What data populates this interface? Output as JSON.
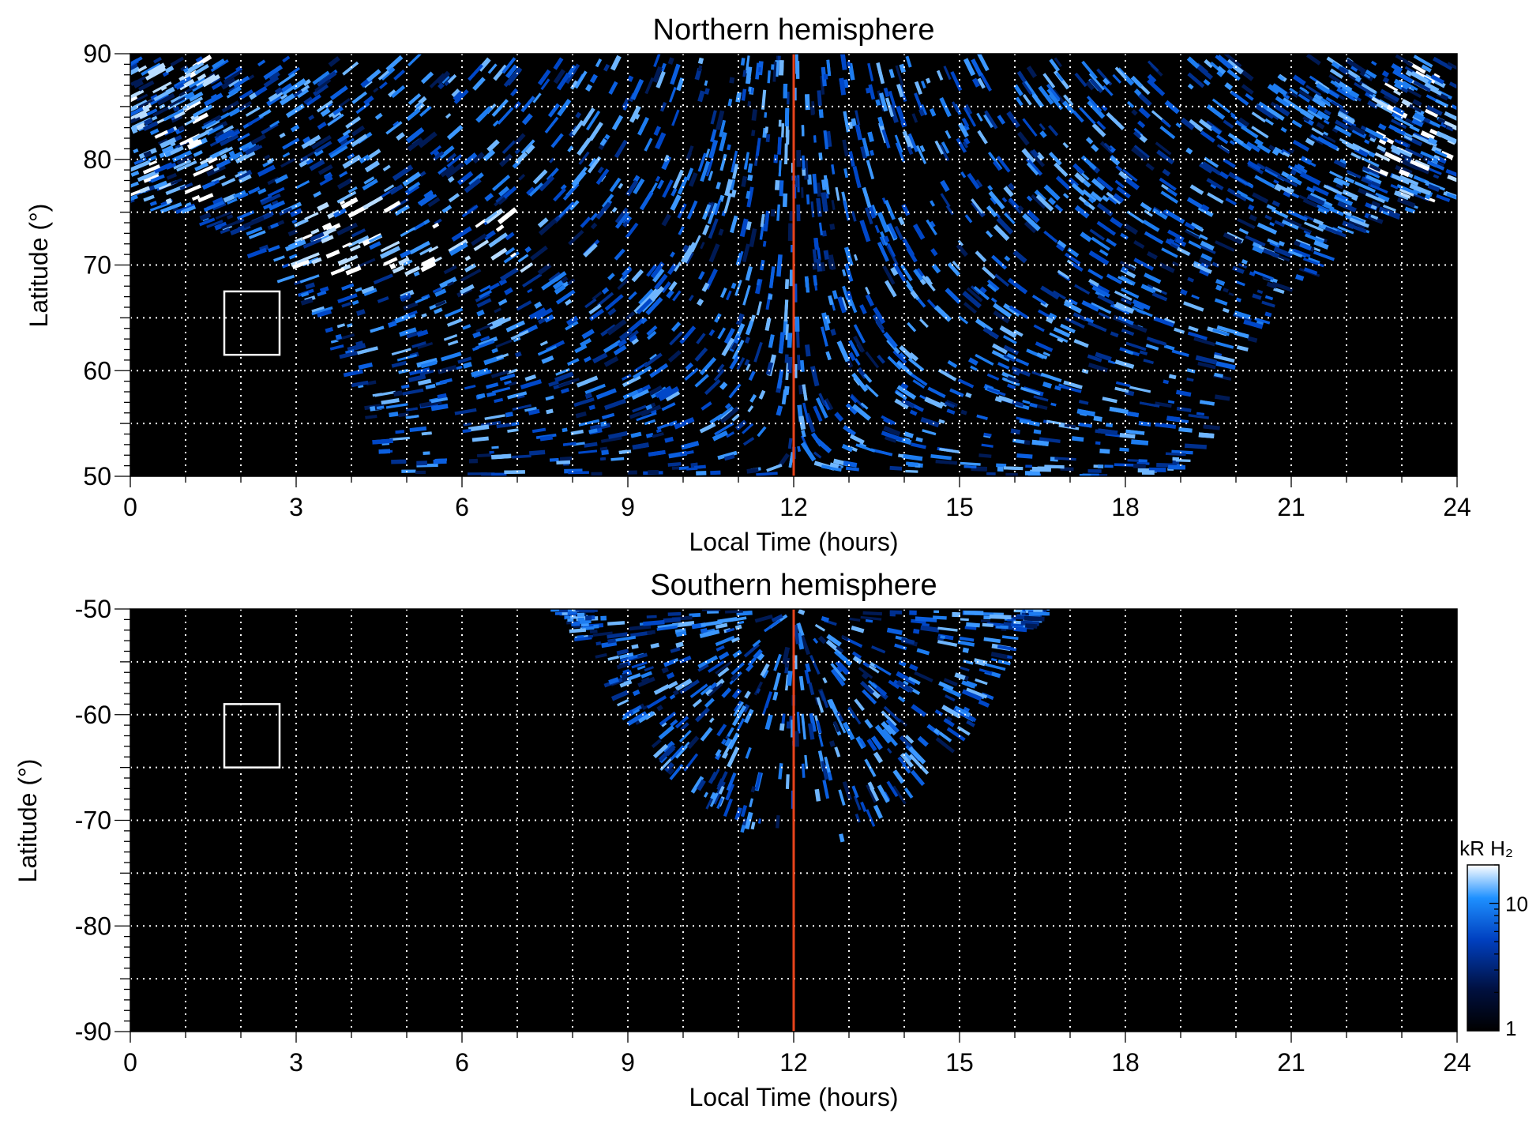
{
  "chart_data": [
    {
      "type": "heatmap",
      "title": "Northern hemisphere",
      "xlabel": "Local Time (hours)",
      "ylabel": "Latitude (°)",
      "xlim": [
        0,
        24
      ],
      "ylim": [
        50,
        90
      ],
      "xticks": [
        "0",
        "3",
        "6",
        "9",
        "12",
        "15",
        "18",
        "21",
        "24"
      ],
      "yticks": [
        "50",
        "60",
        "70",
        "80",
        "90"
      ],
      "xtick_values": [
        0,
        3,
        6,
        9,
        12,
        15,
        18,
        21,
        24
      ],
      "ytick_values": [
        50,
        60,
        70,
        80,
        90
      ],
      "grid": true,
      "grid_x_step": 1,
      "grid_y_step": 5,
      "reference_line_x": 12,
      "reference_line_color": "#e8431b",
      "box": {
        "x0": 1.7,
        "x1": 2.7,
        "y0": 61.5,
        "y1": 67.5
      },
      "coverage_edge_latitude_by_lt": [
        [
          0,
          76
        ],
        [
          1,
          75
        ],
        [
          2,
          72.5
        ],
        [
          3,
          67.5
        ],
        [
          4,
          60
        ],
        [
          4.6,
          52
        ],
        [
          5,
          50
        ],
        [
          19,
          50
        ],
        [
          19.4,
          52
        ],
        [
          20,
          60
        ],
        [
          21,
          67.5
        ],
        [
          22,
          72.5
        ],
        [
          23,
          75
        ],
        [
          24,
          76
        ]
      ],
      "features": [
        {
          "desc_lt": [
            3,
            7.5
          ],
          "lat": [
            69,
            76
          ]
        },
        {
          "desc_lt": [
            22.5,
            24
          ],
          "lat": [
            76,
            86
          ]
        }
      ]
    },
    {
      "type": "heatmap",
      "title": "Southern hemisphere",
      "xlabel": "Local Time (hours)",
      "ylabel": "Latitude (°)",
      "xlim": [
        0,
        24
      ],
      "ylim": [
        -90,
        -50
      ],
      "xticks": [
        "0",
        "3",
        "6",
        "9",
        "12",
        "15",
        "18",
        "21",
        "24"
      ],
      "yticks": [
        "-90",
        "-80",
        "-70",
        "-60",
        "-50"
      ],
      "xtick_values": [
        0,
        3,
        6,
        9,
        12,
        15,
        18,
        21,
        24
      ],
      "ytick_values": [
        -90,
        -80,
        -70,
        -60,
        -50
      ],
      "grid": true,
      "grid_x_step": 1,
      "grid_y_step": 5,
      "reference_line_x": 12,
      "reference_line_color": "#e8431b",
      "box": {
        "x0": 1.7,
        "x1": 2.7,
        "y0": -65,
        "y1": -59
      },
      "coverage_edge_latitude_by_lt": [
        [
          7.8,
          -50
        ],
        [
          9,
          -60
        ],
        [
          10,
          -67
        ],
        [
          11,
          -71
        ],
        [
          12,
          -70
        ],
        [
          13,
          -72
        ],
        [
          14,
          -68
        ],
        [
          15.2,
          -61
        ],
        [
          16.5,
          -50
        ]
      ]
    }
  ],
  "colorbar": {
    "label": "kR H₂",
    "scale": "log",
    "range": [
      1,
      20
    ],
    "ticks": [
      "1",
      "10"
    ],
    "tick_values": [
      1,
      10
    ],
    "colors": [
      "#000000",
      "#001040",
      "#0040c0",
      "#1e90ff",
      "#ffffff"
    ]
  }
}
